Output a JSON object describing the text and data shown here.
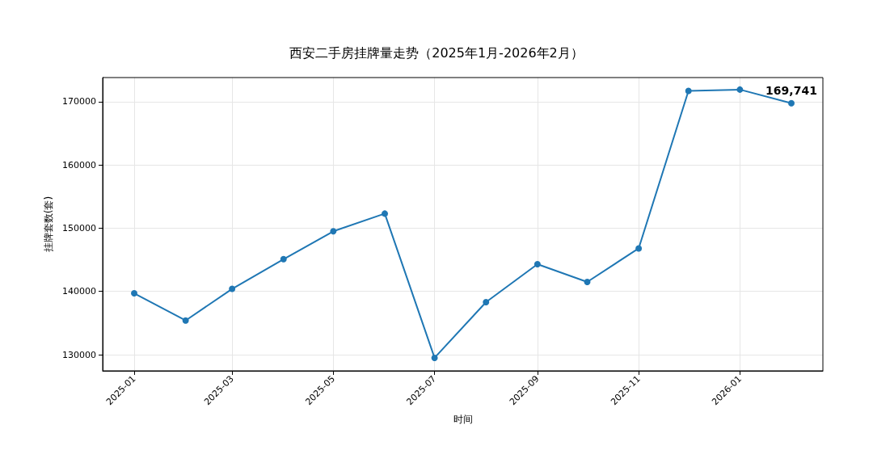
{
  "chart_data": {
    "type": "line",
    "title": "西安二手房挂牌量走势（2025年1月-2026年2月）",
    "xlabel": "时间",
    "ylabel": "挂牌套数(套)",
    "x": [
      "2025-01",
      "2025-02",
      "2025-03",
      "2025-04",
      "2025-05",
      "2025-06",
      "2025-07",
      "2025-08",
      "2025-09",
      "2025-10",
      "2025-11",
      "2025-12",
      "2026-01",
      "2026-02"
    ],
    "series": [
      {
        "color": "#1f77b4",
        "values": [
          139700,
          135400,
          140400,
          145100,
          149500,
          152300,
          129500,
          138300,
          144300,
          141500,
          146800,
          171700,
          171900,
          169741
        ]
      }
    ],
    "xlim": [
      "2024-12-13",
      "2026-02-20"
    ],
    "xticks": [
      "2025-01",
      "2025-03",
      "2025-05",
      "2025-07",
      "2025-09",
      "2025-11",
      "2026-01"
    ],
    "ylim": [
      127450,
      173800
    ],
    "yticks": [
      130000,
      140000,
      150000,
      160000,
      170000
    ],
    "annotations": [
      {
        "text": "169,741",
        "x": "2026-02",
        "y": 169741
      }
    ],
    "grid": true,
    "marker": "circle",
    "line_style": "solid"
  }
}
